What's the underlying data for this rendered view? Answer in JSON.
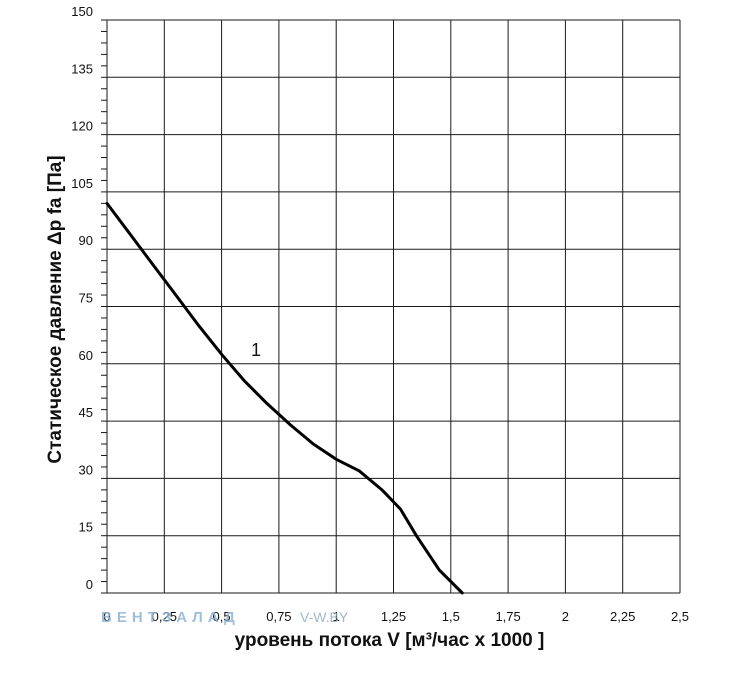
{
  "chart_data": {
    "type": "line",
    "xlabel": "уровень потока  V [м³/час x 1000 ]",
    "ylabel": "Статическое давление  Δp fa [Па]",
    "xlim": [
      0,
      2.5
    ],
    "ylim": [
      0,
      150
    ],
    "x_ticks": [
      "0",
      "0,25",
      "0,5",
      "0,75",
      "1",
      "1,25",
      "1,5",
      "1,75",
      "2",
      "2,25",
      "2,5"
    ],
    "y_ticks": [
      "0",
      "15",
      "30",
      "45",
      "60",
      "75",
      "90",
      "105",
      "120",
      "135",
      "150"
    ],
    "x_grid_step": 0.25,
    "y_grid_step": 15,
    "y_minor_step": 3,
    "grid": true,
    "series": [
      {
        "name": "1",
        "color": "#000000",
        "points": [
          [
            0.0,
            102
          ],
          [
            0.1,
            94
          ],
          [
            0.2,
            86
          ],
          [
            0.3,
            78
          ],
          [
            0.4,
            70
          ],
          [
            0.5,
            62.5
          ],
          [
            0.6,
            55.5
          ],
          [
            0.7,
            49.5
          ],
          [
            0.8,
            44
          ],
          [
            0.9,
            39
          ],
          [
            1.0,
            35
          ],
          [
            1.1,
            32
          ],
          [
            1.2,
            27
          ],
          [
            1.28,
            22
          ],
          [
            1.35,
            15
          ],
          [
            1.45,
            6
          ],
          [
            1.55,
            0
          ]
        ],
        "label_at": [
          0.65,
          62
        ]
      }
    ]
  },
  "watermark": {
    "brand": "ВЕНТЗАЛАД",
    "url": "V-W.BY"
  }
}
